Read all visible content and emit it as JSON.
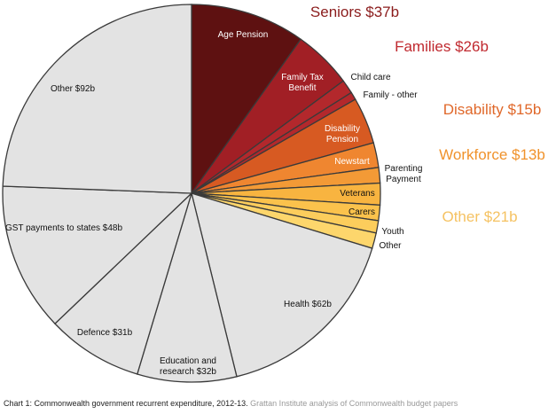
{
  "chart_data": {
    "type": "pie",
    "title": "Chart 1: Commonwealth government recurrent expenditure, 2012-13.",
    "source": "Grattan Institute analysis of Commonwealth budget papers",
    "categories": [
      "Age Pension",
      "Family Tax Benefit",
      "Child care",
      "Family - other",
      "Disability Pension",
      "Newstart",
      "Parenting Payment",
      "Veterans",
      "Carers",
      "Youth",
      "Other",
      "Health $62b",
      "Education and research $32b",
      "Defence $31b",
      "GST payments to states $48b",
      "Other $92b"
    ],
    "values": [
      37,
      19,
      4.5,
      2.5,
      15,
      8,
      5,
      7,
      5,
      4,
      5,
      62,
      32,
      31,
      48,
      92
    ],
    "colors": [
      "#5e1111",
      "#a11f25",
      "#b3282c",
      "#b3282c",
      "#d75a22",
      "#ef8630",
      "#f39a36",
      "#f8b440",
      "#fbc24c",
      "#fccd5c",
      "#fdd66c",
      "#e3e3e3",
      "#e3e3e3",
      "#e3e3e3",
      "#e3e3e3",
      "#e3e3e3"
    ],
    "groups": [
      {
        "name": "Seniors $37b",
        "color": "#8b1c1c"
      },
      {
        "name": "Families $26b",
        "color": "#c0292f"
      },
      {
        "name": "Disability $15b",
        "color": "#e0682a"
      },
      {
        "name": "Workforce $13b",
        "color": "#f0922b"
      },
      {
        "name": "Other $21b",
        "color": "#f5c262"
      }
    ]
  }
}
